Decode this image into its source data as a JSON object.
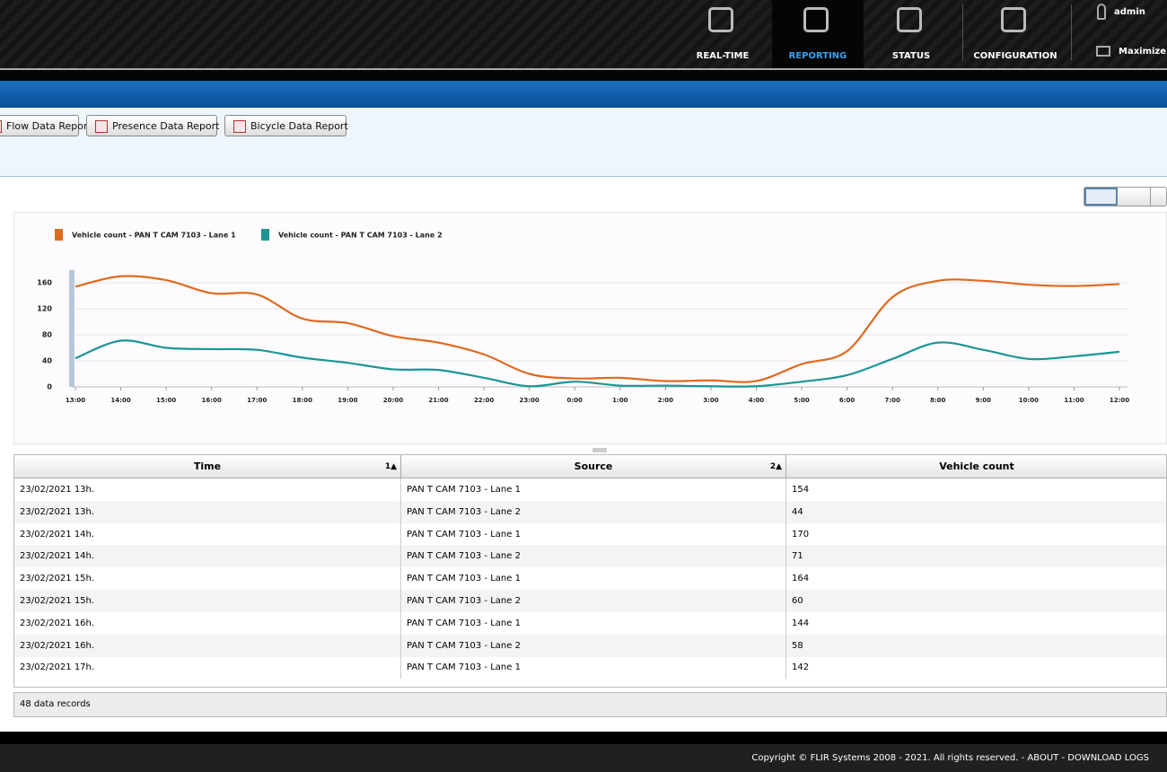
{
  "nav": {
    "items": [
      "REAL-TIME",
      "REPORTING",
      "STATUS",
      "CONFIGURATION"
    ],
    "user": "admin",
    "maximize": "Maximize"
  },
  "report_buttons": [
    "Flow Data Report",
    "Presence Data Report",
    "Bicycle Data Report"
  ],
  "chart_data": {
    "type": "line",
    "x": [
      "13:00",
      "14:00",
      "15:00",
      "16:00",
      "17:00",
      "18:00",
      "19:00",
      "20:00",
      "21:00",
      "22:00",
      "23:00",
      "0:00",
      "1:00",
      "2:00",
      "3:00",
      "4:00",
      "5:00",
      "6:00",
      "7:00",
      "8:00",
      "9:00",
      "10:00",
      "11:00",
      "12:00"
    ],
    "series": [
      {
        "name": "Vehicle count - PAN T CAM 7103 - Lane 1",
        "color": "#e0691f",
        "values": [
          154,
          170,
          164,
          144,
          142,
          105,
          98,
          78,
          68,
          50,
          20,
          13,
          14,
          9,
          10,
          9,
          35,
          55,
          138,
          163,
          163,
          157,
          155,
          158
        ]
      },
      {
        "name": "Vehicle count - PAN T CAM 7103 - Lane 2",
        "color": "#1b9696",
        "values": [
          44,
          71,
          60,
          58,
          57,
          45,
          37,
          27,
          26,
          14,
          1,
          8,
          2,
          2,
          1,
          1,
          8,
          18,
          43,
          68,
          57,
          43,
          47,
          54
        ]
      }
    ],
    "ylim": [
      0,
      180
    ],
    "yticks": [
      0,
      40,
      80,
      120,
      160
    ],
    "grid": true
  },
  "table": {
    "columns": [
      "Time",
      "Source",
      "Vehicle count"
    ],
    "sort_badges": [
      "1▲",
      "2▲"
    ],
    "rows": [
      [
        "23/02/2021 13h.",
        "PAN T CAM 7103 - Lane 1",
        "154"
      ],
      [
        "23/02/2021 13h.",
        "PAN T CAM 7103 - Lane 2",
        "44"
      ],
      [
        "23/02/2021 14h.",
        "PAN T CAM 7103 - Lane 1",
        "170"
      ],
      [
        "23/02/2021 14h.",
        "PAN T CAM 7103 - Lane 2",
        "71"
      ],
      [
        "23/02/2021 15h.",
        "PAN T CAM 7103 - Lane 1",
        "164"
      ],
      [
        "23/02/2021 15h.",
        "PAN T CAM 7103 - Lane 2",
        "60"
      ],
      [
        "23/02/2021 16h.",
        "PAN T CAM 7103 - Lane 1",
        "144"
      ],
      [
        "23/02/2021 16h.",
        "PAN T CAM 7103 - Lane 2",
        "58"
      ],
      [
        "23/02/2021 17h.",
        "PAN T CAM 7103 - Lane 1",
        "142"
      ]
    ],
    "record_count": "48 data records"
  },
  "footer": {
    "copyright": "Copyright © FLIR Systems 2008 - 2021. All rights reserved.",
    "links": [
      "- ABOUT",
      "- DOWNLOAD LOGS"
    ]
  }
}
